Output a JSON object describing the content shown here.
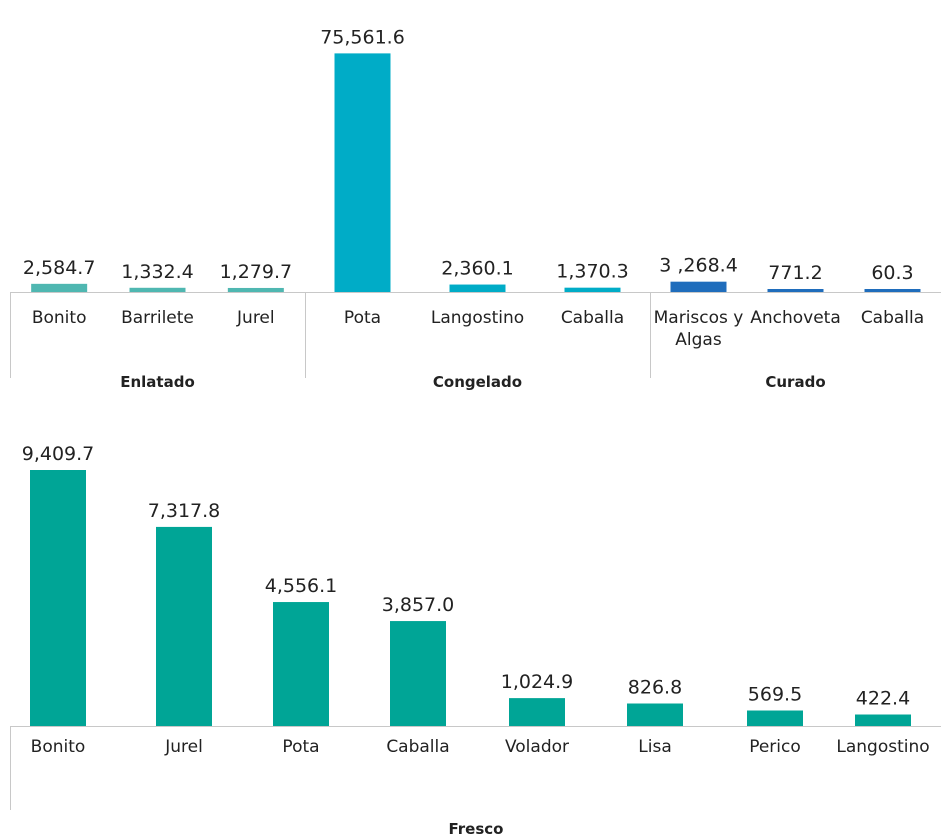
{
  "chart_data": [
    {
      "type": "bar",
      "groups": [
        {
          "label": "Enlatado",
          "color": "#4fb7b1",
          "categories": [
            "Bonito",
            "Barrilete",
            "Jurel"
          ],
          "values": [
            2584.7,
            1332.4,
            1279.7
          ],
          "value_labels": [
            "2,584.7",
            "1,332.4",
            "1,279.7"
          ]
        },
        {
          "label": "Congelado",
          "color": "#00acc7",
          "categories": [
            "Pota",
            "Langostino",
            "Caballa"
          ],
          "values": [
            75561.6,
            2360.1,
            1370.3
          ],
          "value_labels": [
            "75,561.6",
            "2,360.1",
            "1,370.3"
          ]
        },
        {
          "label": "Curado",
          "color": "#1f6dbc",
          "categories": [
            "Mariscos y Algas",
            "Anchoveta",
            "Caballa"
          ],
          "category_lines": [
            [
              "Mariscos y",
              "Algas"
            ],
            [
              "Anchoveta"
            ],
            [
              "Caballa"
            ]
          ],
          "values": [
            3268.4,
            771.2,
            60.3
          ],
          "value_labels": [
            "3 ,268.4",
            "771.2",
            "60.3"
          ]
        }
      ],
      "ylim": [
        0,
        76000
      ]
    },
    {
      "type": "bar",
      "groups": [
        {
          "label": "Fresco",
          "color": "#00a596",
          "categories": [
            "Bonito",
            "Jurel",
            "Pota",
            "Caballa",
            "Volador",
            "Lisa",
            "Perico",
            "Langostino"
          ],
          "values": [
            9409.7,
            7317.8,
            4556.1,
            3857.0,
            1024.9,
            826.8,
            569.5,
            422.4
          ],
          "value_labels": [
            "9,409.7",
            "7,317.8",
            "4,556.1",
            "3,857.0",
            "1,024.9",
            "826.8",
            "569.5",
            "422.4"
          ]
        }
      ],
      "ylim": [
        0,
        9409.7
      ]
    }
  ]
}
